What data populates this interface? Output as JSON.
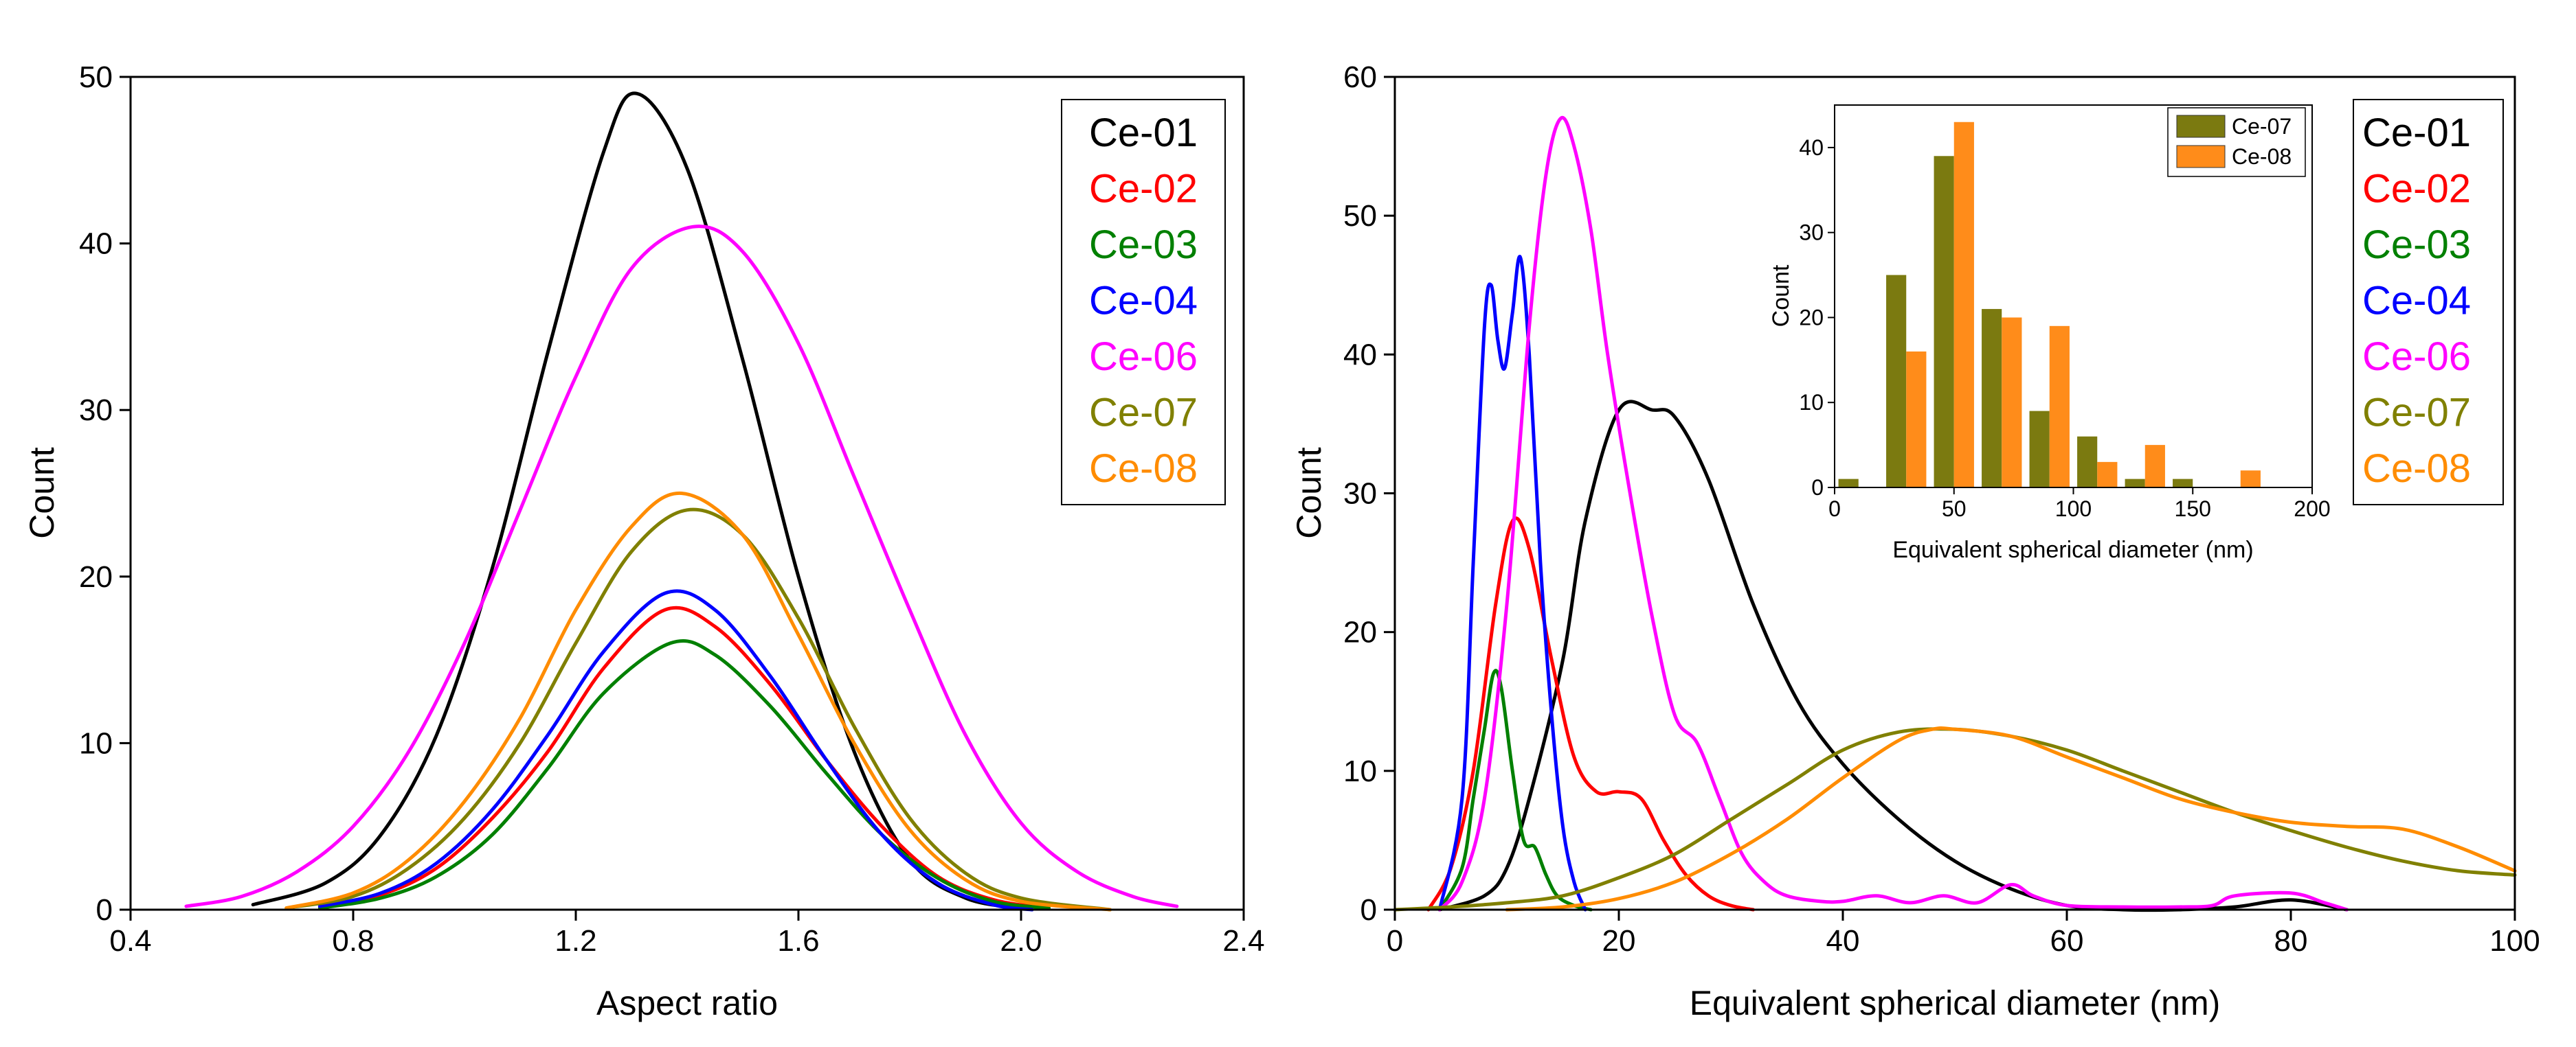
{
  "chart_data": [
    {
      "type": "line",
      "xlabel": "Aspect ratio",
      "ylabel": "Count",
      "xlim": [
        0.4,
        2.4
      ],
      "ylim": [
        0,
        50
      ],
      "xticks": [
        "0.4",
        "0.8",
        "1.2",
        "1.6",
        "2.0",
        "2.4"
      ],
      "yticks": [
        "0",
        "10",
        "20",
        "30",
        "40",
        "50"
      ],
      "grid": false,
      "legend_position": "top-right",
      "series": [
        {
          "name": "Ce-01",
          "color": "#000000",
          "x": [
            0.62,
            0.75,
            0.85,
            0.95,
            1.05,
            1.15,
            1.25,
            1.31,
            1.4,
            1.5,
            1.6,
            1.7,
            1.8,
            1.9,
            2.0
          ],
          "y": [
            0.3,
            1.6,
            4.5,
            10.5,
            20.5,
            33.5,
            45.5,
            49,
            44.5,
            33,
            20,
            9.5,
            3,
            0.7,
            0.1
          ]
        },
        {
          "name": "Ce-02",
          "color": "#ff0000",
          "x": [
            0.74,
            0.85,
            0.95,
            1.05,
            1.15,
            1.25,
            1.36,
            1.45,
            1.55,
            1.65,
            1.75,
            1.85,
            1.95,
            2.05
          ],
          "y": [
            0.2,
            0.9,
            2.5,
            5.5,
            9.5,
            14.5,
            18,
            17,
            13.5,
            9,
            5,
            2,
            0.6,
            0.1
          ]
        },
        {
          "name": "Ce-03",
          "color": "#008000",
          "x": [
            0.74,
            0.85,
            0.95,
            1.05,
            1.15,
            1.25,
            1.37,
            1.45,
            1.55,
            1.65,
            1.75,
            1.85,
            1.95,
            2.05
          ],
          "y": [
            0.1,
            0.7,
            2,
            4.5,
            8.5,
            13,
            16,
            15.3,
            12.2,
            8.2,
            4.5,
            1.9,
            0.5,
            0.1
          ]
        },
        {
          "name": "Ce-04",
          "color": "#0000ff",
          "x": [
            0.74,
            0.85,
            0.95,
            1.05,
            1.15,
            1.25,
            1.36,
            1.45,
            1.55,
            1.65,
            1.75,
            1.85,
            1.95,
            2.02
          ],
          "y": [
            0.2,
            1,
            2.8,
            6,
            10.5,
            15.5,
            19,
            18,
            14,
            9,
            4.5,
            1.6,
            0.3,
            0
          ]
        },
        {
          "name": "Ce-06",
          "color": "#ff00ff",
          "x": [
            0.5,
            0.6,
            0.7,
            0.8,
            0.9,
            1.0,
            1.1,
            1.2,
            1.3,
            1.41,
            1.5,
            1.6,
            1.7,
            1.8,
            1.9,
            2.0,
            2.1,
            2.2,
            2.28
          ],
          "y": [
            0.2,
            0.8,
            2.3,
            5,
            9.5,
            16,
            24,
            32,
            38.5,
            41,
            39.5,
            34,
            26,
            18,
            10.5,
            5.2,
            2.3,
            0.8,
            0.2
          ]
        },
        {
          "name": "Ce-07",
          "color": "#808000",
          "x": [
            0.68,
            0.8,
            0.9,
            1.0,
            1.1,
            1.2,
            1.3,
            1.4,
            1.5,
            1.6,
            1.7,
            1.8,
            1.9,
            2.0,
            2.16
          ],
          "y": [
            0.1,
            0.8,
            2.5,
            5.5,
            10,
            16,
            21.5,
            24,
            22.5,
            17.5,
            11,
            5.5,
            2.2,
            0.7,
            0
          ]
        },
        {
          "name": "Ce-08",
          "color": "#ff8c00",
          "x": [
            0.68,
            0.8,
            0.9,
            1.0,
            1.1,
            1.2,
            1.3,
            1.39,
            1.5,
            1.6,
            1.7,
            1.8,
            1.9,
            2.0,
            2.16
          ],
          "y": [
            0.1,
            1,
            3,
            6.5,
            11.5,
            18,
            23,
            25,
            22.5,
            16.5,
            10,
            4.8,
            1.8,
            0.5,
            0
          ]
        }
      ]
    },
    {
      "type": "line",
      "xlabel": "Equivalent spherical diameter (nm)",
      "ylabel": "Count",
      "xlim": [
        0,
        100
      ],
      "ylim": [
        0,
        60
      ],
      "xticks": [
        "0",
        "20",
        "40",
        "60",
        "80",
        "100"
      ],
      "yticks": [
        "0",
        "10",
        "20",
        "30",
        "40",
        "50",
        "60"
      ],
      "grid": false,
      "legend_position": "top-right",
      "series": [
        {
          "name": "Ce-01",
          "color": "#000000",
          "x": [
            4,
            8,
            10,
            12,
            15,
            17,
            20,
            23,
            25,
            28,
            32,
            36,
            40,
            45,
            50,
            55,
            60,
            65,
            70,
            75,
            80,
            85
          ],
          "y": [
            0,
            1,
            3,
            8,
            18,
            28,
            36,
            36,
            35.5,
            31,
            22,
            15,
            10.5,
            6.5,
            3.5,
            1.5,
            0.3,
            0,
            0,
            0.2,
            0.7,
            0
          ]
        },
        {
          "name": "Ce-02",
          "color": "#ff0000",
          "x": [
            3,
            5,
            7,
            9,
            10.5,
            12,
            14,
            16,
            18,
            20,
            22,
            24,
            26,
            28,
            30,
            32
          ],
          "y": [
            0,
            3,
            10,
            22,
            28,
            26,
            18,
            11,
            8.5,
            8.5,
            8,
            5,
            2.5,
            1,
            0.3,
            0
          ]
        },
        {
          "name": "Ce-03",
          "color": "#008000",
          "x": [
            4,
            6,
            7,
            8,
            8.8,
            9.5,
            10.5,
            11.5,
            12.5,
            13.5,
            14.5,
            16,
            17.5
          ],
          "y": [
            0,
            3,
            8,
            13,
            17,
            16,
            10,
            5,
            4.5,
            2.5,
            1,
            0.3,
            0
          ]
        },
        {
          "name": "Ce-04",
          "color": "#0000ff",
          "x": [
            4,
            6,
            7,
            8,
            8.6,
            9.2,
            9.8,
            10.5,
            11.2,
            12,
            13,
            14,
            15,
            16,
            17
          ],
          "y": [
            0,
            8,
            25,
            42,
            45,
            41,
            39,
            43,
            47,
            40,
            25,
            14,
            6,
            2,
            0
          ]
        },
        {
          "name": "Ce-06",
          "color": "#ff00ff",
          "x": [
            4,
            6,
            8,
            10,
            12,
            13.5,
            14.8,
            16,
            17.5,
            19,
            21,
            23,
            25,
            27,
            29,
            31,
            33,
            35,
            38,
            40,
            43,
            46,
            49,
            52,
            55,
            57,
            60,
            65,
            70,
            73,
            75,
            80,
            83,
            85
          ],
          "y": [
            0,
            2,
            8,
            22,
            42,
            53,
            57,
            55,
            49,
            40,
            30,
            21,
            14,
            12,
            8,
            4,
            2,
            1,
            0.6,
            0.6,
            1,
            0.5,
            1,
            0.5,
            1.8,
            1,
            0.3,
            0.2,
            0.2,
            0.3,
            1,
            1.2,
            0.5,
            0
          ]
        },
        {
          "name": "Ce-07",
          "color": "#808000",
          "x": [
            0,
            5,
            10,
            15,
            20,
            25,
            30,
            35,
            40,
            45,
            50,
            55,
            60,
            65,
            70,
            75,
            80,
            85,
            90,
            95,
            100
          ],
          "y": [
            0,
            0.2,
            0.5,
            1,
            2.3,
            4,
            6.5,
            9,
            11.5,
            12.8,
            13,
            12.5,
            11.5,
            10,
            8.5,
            7,
            5.7,
            4.5,
            3.5,
            2.8,
            2.5
          ]
        },
        {
          "name": "Ce-08",
          "color": "#ff8c00",
          "x": [
            10,
            15,
            20,
            25,
            30,
            35,
            40,
            45,
            48,
            50,
            55,
            60,
            65,
            70,
            75,
            80,
            85,
            90,
            95,
            100
          ],
          "y": [
            0,
            0.2,
            0.8,
            2,
            4,
            6.5,
            9.5,
            12.2,
            13,
            13,
            12.5,
            11,
            9.5,
            8,
            7,
            6.3,
            6,
            5.8,
            4.5,
            2.8
          ]
        }
      ]
    },
    {
      "type": "bar",
      "role": "inset",
      "xlabel": "Equivalent spherical diameter (nm)",
      "ylabel": "Count",
      "xlim": [
        0,
        200
      ],
      "ylim": [
        0,
        45
      ],
      "xticks": [
        "0",
        "50",
        "100",
        "150",
        "200"
      ],
      "yticks": [
        "0",
        "10",
        "20",
        "30",
        "40"
      ],
      "legend_position": "top-right",
      "bin_centers": [
        10,
        30,
        50,
        70,
        90,
        110,
        130,
        150,
        170
      ],
      "series": [
        {
          "name": "Ce-07",
          "color": "#7b7a10",
          "values": [
            1,
            25,
            39,
            21,
            9,
            6,
            1,
            1,
            0
          ]
        },
        {
          "name": "Ce-08",
          "color": "#ff8c1a",
          "values": [
            0,
            16,
            43,
            20,
            19,
            3,
            5,
            0,
            2
          ]
        }
      ]
    }
  ]
}
